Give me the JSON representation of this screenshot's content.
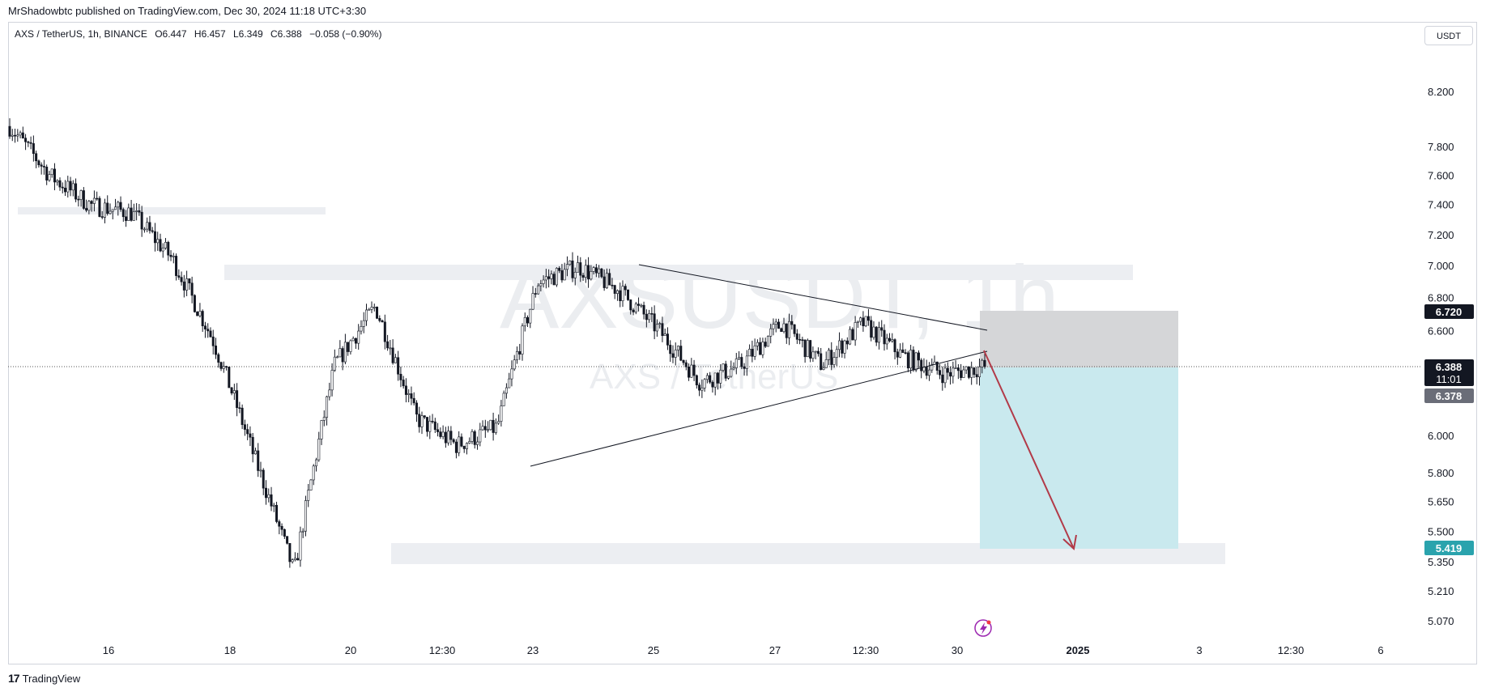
{
  "header": {
    "published": "MrShadowbtc published on TradingView.com, Dec 30, 2024 11:18 UTC+3:30"
  },
  "legend": {
    "symbol": "AXS / TetherUS, 1h, BINANCE",
    "open": "O6.447",
    "high": "H6.457",
    "low": "L6.349",
    "close": "C6.388",
    "change": "−0.058 (−0.90%)"
  },
  "unit_label": "USDT",
  "watermark": {
    "symbol": "AXSUSDT, 1h",
    "description": "AXS / TetherUS"
  },
  "footer": {
    "logo": "17",
    "brand": "TradingView"
  },
  "colors": {
    "accent_cyan": "#2aa3ad",
    "badge_dark": "#131722",
    "badge_gray": "#6a6d78",
    "short_zone_red": "#d1d4dc",
    "target_zone": "#b2e0e6",
    "arrow": "#b23a48"
  },
  "chart_data": {
    "type": "candlestick",
    "yaxis": {
      "ticks": [
        "8.200",
        "7.800",
        "7.600",
        "7.400",
        "7.200",
        "7.000",
        "6.800",
        "6.600",
        "6.000",
        "5.800",
        "5.650",
        "5.500",
        "5.350",
        "5.210",
        "5.070"
      ],
      "scale": "log"
    },
    "xaxis": {
      "ticks": [
        "16",
        "18",
        "20",
        "12:30",
        "23",
        "25",
        "27",
        "12:30",
        "30",
        "2025",
        "3",
        "12:30",
        "6"
      ]
    },
    "price_badges": {
      "current": "6.388",
      "countdown": "11:01",
      "stop": "6.720",
      "entry": "6.378",
      "target": "5.419"
    },
    "key_points": [
      {
        "date": "Dec 15",
        "price": 7.95
      },
      {
        "date": "Dec 16",
        "price": 7.6
      },
      {
        "date": "Dec 17",
        "price": 7.4
      },
      {
        "date": "Dec 18",
        "price": 7.35
      },
      {
        "date": "Dec 18 12:00",
        "price": 7.05
      },
      {
        "date": "Dec 19",
        "price": 6.55
      },
      {
        "date": "Dec 20",
        "price": 5.9
      },
      {
        "date": "Dec 20 18:00",
        "price": 5.3
      },
      {
        "date": "Dec 21",
        "price": 6.4
      },
      {
        "date": "Dec 21 06:00",
        "price": 6.75
      },
      {
        "date": "Dec 22",
        "price": 6.1
      },
      {
        "date": "Dec 23",
        "price": 5.95
      },
      {
        "date": "Dec 23 12:00",
        "price": 6.05
      },
      {
        "date": "Dec 24",
        "price": 6.9
      },
      {
        "date": "Dec 24 18:00",
        "price": 7.0
      },
      {
        "date": "Dec 25 12:00",
        "price": 6.85
      },
      {
        "date": "Dec 26",
        "price": 6.6
      },
      {
        "date": "Dec 26 12:00",
        "price": 6.3
      },
      {
        "date": "Dec 27",
        "price": 6.4
      },
      {
        "date": "Dec 27 06:00",
        "price": 6.65
      },
      {
        "date": "Dec 28",
        "price": 6.4
      },
      {
        "date": "Dec 29",
        "price": 6.65
      },
      {
        "date": "Dec 29 18:00",
        "price": 6.45
      },
      {
        "date": "Dec 30",
        "price": 6.35
      },
      {
        "date": "Dec 30 11:00",
        "price": 6.39
      }
    ]
  }
}
